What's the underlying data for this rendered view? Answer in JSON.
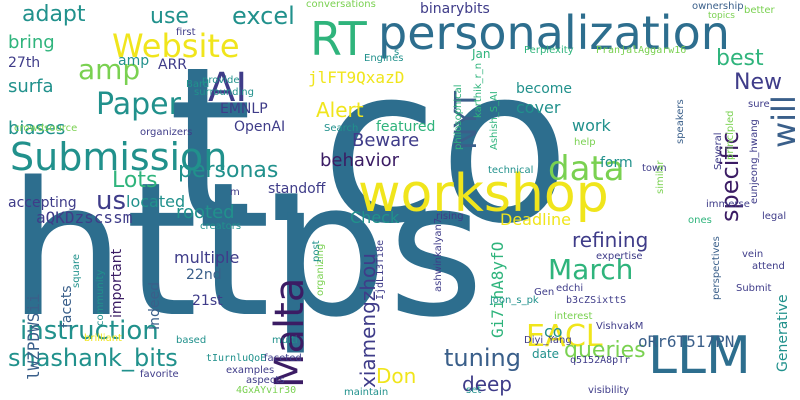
{
  "palette": {
    "dark_purple": "#3b1c64",
    "indigo": "#3f3c89",
    "blue": "#2d6e8e",
    "teal": "#21918c",
    "green": "#2fb47c",
    "light_green": "#7ad151",
    "yellow": "#f0e51c",
    "grey_blue": "#3a5f8a"
  },
  "words": [
    "t.co",
    "https",
    "workshop",
    "LLM",
    "personalization",
    "RT",
    "Submission",
    "AI",
    "Website",
    "Paper",
    "amp",
    "Malta",
    "will",
    "data",
    "March",
    "EACL",
    "xiamengzhou",
    "NYT",
    "specific",
    "instruction",
    "shashank_bits",
    "tuning",
    "queries",
    "us",
    "Lots",
    "personas",
    "Alert",
    "Beware",
    "behavior",
    "refining",
    "deep",
    "Don",
    "best",
    "New",
    "excel",
    "use",
    "adapt",
    "bring",
    "surfa",
    "biases",
    "27th",
    "amp2",
    "binarybits",
    "located",
    "rooted",
    "multiple",
    "22nd",
    "21st",
    "facets",
    "Indeed",
    "important",
    "Check",
    "Deadline",
    "work",
    "become",
    "cover",
    "featured",
    "form",
    "standoff",
    "accepting",
    "OpenAI",
    "EMNLP",
    "ARR",
    "jlFT9QxazD",
    "aQKDzscssm",
    "Gi7ihA8yfO",
    "oRr6T517PN",
    "lWZPDWSii",
    "co",
    "date",
    "Generative",
    "conversations",
    "first",
    "Jan",
    "Perplexity",
    "PranjalAggarw16",
    "ownership",
    "topics",
    "better",
    "speakers",
    "philosophical",
    "Ashish_S_AI",
    "karthik_r_n",
    "Search",
    "technical",
    "town",
    "Several",
    "principled",
    "eunjeong_hwang",
    "similar",
    "immerse",
    "legal",
    "ones",
    "expertise",
    "vein",
    "attend",
    "Submit",
    "perspectives",
    "VishvakM",
    "b3cZSixttS",
    "edchi",
    "Gen",
    "joon_s_pk",
    "interest",
    "IjdL13Ti8e",
    "ashwinkalyan7",
    "rising",
    "Engines",
    "organizing",
    "post",
    "square",
    "community",
    "creators",
    "surrounding",
    "provide",
    "Bard",
    "crowdsource",
    "organizers",
    "brilliant",
    "based",
    "multi",
    "faceted",
    "examples",
    "aspects",
    "favorite",
    "tIurnluQoE",
    "4GxAYvir30",
    "maintain",
    "set",
    "visibility",
    "q5152A8pTr",
    "Diyi_Yang",
    "help",
    "sure",
    "m",
    "s"
  ]
}
